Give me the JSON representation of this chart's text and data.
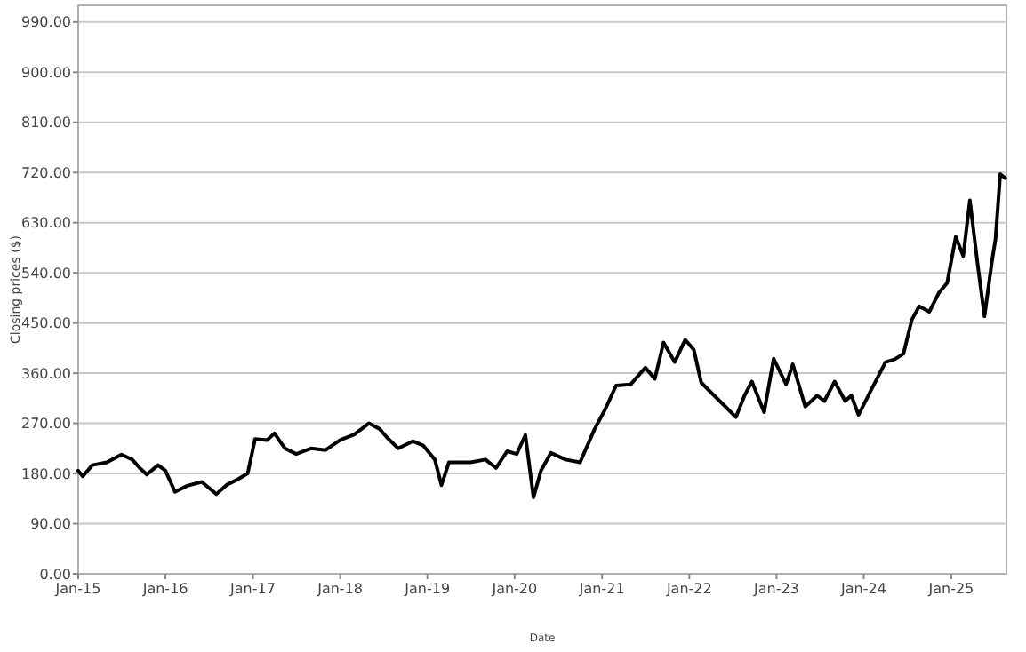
{
  "chart_data": {
    "type": "line",
    "xlabel": "Date",
    "ylabel": "Closing prices ($)",
    "x": [
      "2015-01-01",
      "2015-01-20",
      "2015-03-01",
      "2015-05-01",
      "2015-07-01",
      "2015-08-15",
      "2015-09-15",
      "2015-10-15",
      "2015-12-01",
      "2016-01-01",
      "2016-02-10",
      "2016-04-01",
      "2016-06-01",
      "2016-08-01",
      "2016-09-15",
      "2016-11-01",
      "2016-12-10",
      "2017-01-10",
      "2017-03-01",
      "2017-04-01",
      "2017-05-15",
      "2017-07-01",
      "2017-09-01",
      "2017-11-01",
      "2018-01-01",
      "2018-03-01",
      "2018-05-01",
      "2018-06-15",
      "2018-07-15",
      "2018-09-01",
      "2018-11-01",
      "2018-12-15",
      "2019-02-01",
      "2019-03-01",
      "2019-04-01",
      "2019-07-01",
      "2019-09-01",
      "2019-10-15",
      "2019-12-01",
      "2020-01-10",
      "2020-02-15",
      "2020-03-20",
      "2020-04-20",
      "2020-06-01",
      "2020-08-01",
      "2020-10-01",
      "2020-12-01",
      "2021-01-15",
      "2021-03-01",
      "2021-05-01",
      "2021-07-01",
      "2021-08-10",
      "2021-09-15",
      "2021-11-01",
      "2021-12-15",
      "2022-01-20",
      "2022-02-20",
      "2022-04-15",
      "2022-06-01",
      "2022-07-15",
      "2022-08-20",
      "2022-09-20",
      "2022-11-10",
      "2022-12-20",
      "2023-02-10",
      "2023-03-10",
      "2023-05-01",
      "2023-06-20",
      "2023-07-20",
      "2023-09-01",
      "2023-10-15",
      "2023-11-10",
      "2023-12-10",
      "2024-02-01",
      "2024-04-01",
      "2024-05-10",
      "2024-06-15",
      "2024-07-20",
      "2024-08-20",
      "2024-10-01",
      "2024-11-10",
      "2024-12-15",
      "2025-01-20",
      "2025-02-20",
      "2025-03-20",
      "2025-04-20",
      "2025-05-20",
      "2025-06-20",
      "2025-07-05",
      "2025-07-25",
      "2025-08-15"
    ],
    "series": [
      {
        "color": "#000000",
        "values": [
          185,
          175,
          195,
          200,
          214,
          205,
          190,
          178,
          195,
          185,
          147,
          158,
          165,
          143,
          160,
          170,
          180,
          242,
          240,
          252,
          225,
          215,
          225,
          222,
          240,
          250,
          270,
          260,
          245,
          225,
          238,
          230,
          205,
          159,
          200,
          200,
          205,
          190,
          220,
          215,
          249,
          137,
          185,
          217,
          205,
          200,
          260,
          296,
          338,
          340,
          370,
          350,
          415,
          380,
          420,
          402,
          343,
          320,
          300,
          281,
          320,
          345,
          290,
          386,
          340,
          376,
          300,
          320,
          310,
          345,
          310,
          320,
          285,
          330,
          380,
          385,
          395,
          456,
          480,
          470,
          504,
          522,
          605,
          570,
          670,
          560,
          462,
          560,
          600,
          717,
          710
        ]
      }
    ],
    "xlim": [
      "2015-01-01",
      "2025-08-20"
    ],
    "ylim": [
      0,
      1020
    ],
    "xticks": [
      {
        "value": "2015-01-01",
        "label": "Jan-15"
      },
      {
        "value": "2016-01-01",
        "label": "Jan-16"
      },
      {
        "value": "2017-01-01",
        "label": "Jan-17"
      },
      {
        "value": "2018-01-01",
        "label": "Jan-18"
      },
      {
        "value": "2019-01-01",
        "label": "Jan-19"
      },
      {
        "value": "2020-01-01",
        "label": "Jan-20"
      },
      {
        "value": "2021-01-01",
        "label": "Jan-21"
      },
      {
        "value": "2022-01-01",
        "label": "Jan-22"
      },
      {
        "value": "2023-01-01",
        "label": "Jan-23"
      },
      {
        "value": "2024-01-01",
        "label": "Jan-24"
      },
      {
        "value": "2025-01-01",
        "label": "Jan-25"
      }
    ],
    "yticks": [
      {
        "value": 0,
        "label": "0.00"
      },
      {
        "value": 90,
        "label": "90.00"
      },
      {
        "value": 180,
        "label": "180.00"
      },
      {
        "value": 270,
        "label": "270.00"
      },
      {
        "value": 360,
        "label": "360.00"
      },
      {
        "value": 450,
        "label": "450.00"
      },
      {
        "value": 540,
        "label": "540.00"
      },
      {
        "value": 630,
        "label": "630.00"
      },
      {
        "value": 720,
        "label": "720.00"
      },
      {
        "value": 810,
        "label": "810.00"
      },
      {
        "value": 900,
        "label": "900.00"
      },
      {
        "value": 990,
        "label": "990.00"
      }
    ],
    "grid": "y",
    "marker": "none",
    "line_style": "solid"
  }
}
